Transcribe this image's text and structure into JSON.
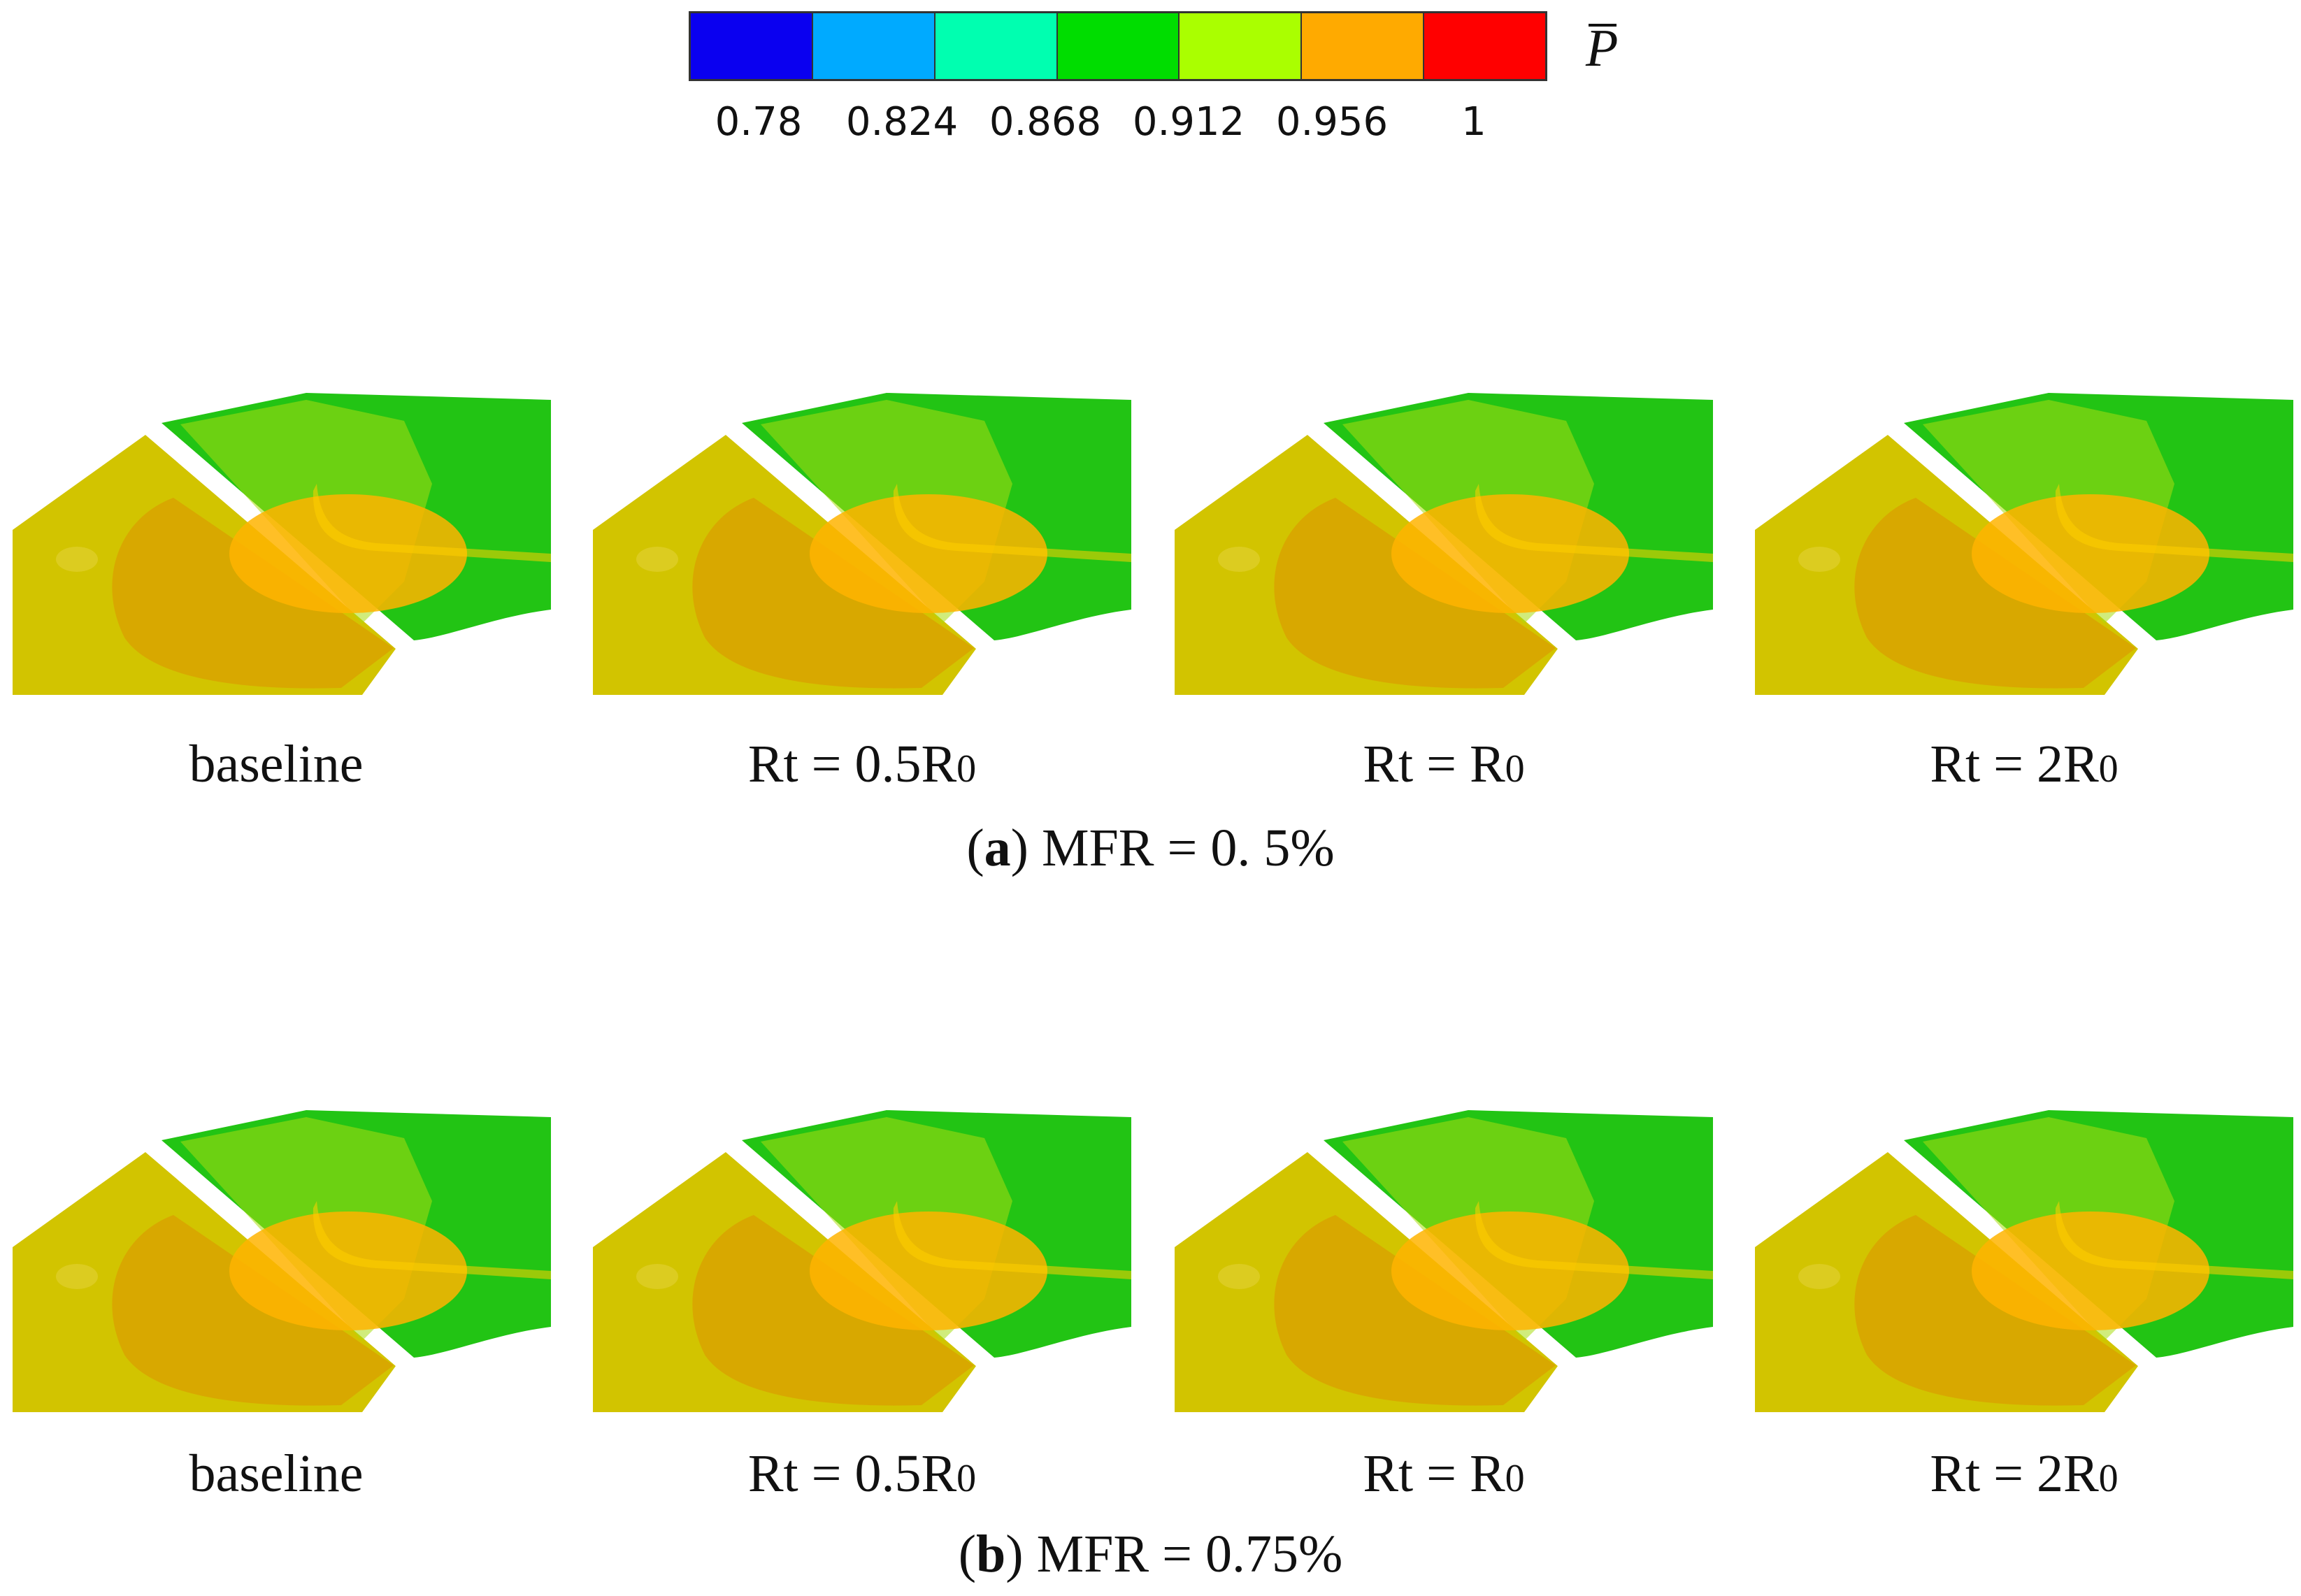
{
  "colorbar": {
    "symbol": "P",
    "colors": [
      "#0a00f0",
      "#00aaff",
      "#00ffb0",
      "#00dd00",
      "#aaff00",
      "#ffaa00",
      "#ff0000"
    ],
    "ticks": [
      "0.78",
      "0.824",
      "0.868",
      "0.912",
      "0.956",
      "1"
    ]
  },
  "rows": [
    {
      "caption_letter": "a",
      "caption_text": ") MFR = 0. 5%",
      "panels": [
        {
          "label": "baseline",
          "label_sub": ""
        },
        {
          "label": "Rt = 0.5R",
          "label_sub": "0"
        },
        {
          "label": "Rt = R",
          "label_sub": "0"
        },
        {
          "label": "Rt = 2R",
          "label_sub": "0"
        }
      ]
    },
    {
      "caption_letter": "b",
      "caption_text": ") MFR = 0.75%",
      "panels": [
        {
          "label": "baseline",
          "label_sub": ""
        },
        {
          "label": "Rt = 0.5R",
          "label_sub": "0"
        },
        {
          "label": "Rt = R",
          "label_sub": "0"
        },
        {
          "label": "Rt = 2R",
          "label_sub": "0"
        }
      ]
    }
  ]
}
